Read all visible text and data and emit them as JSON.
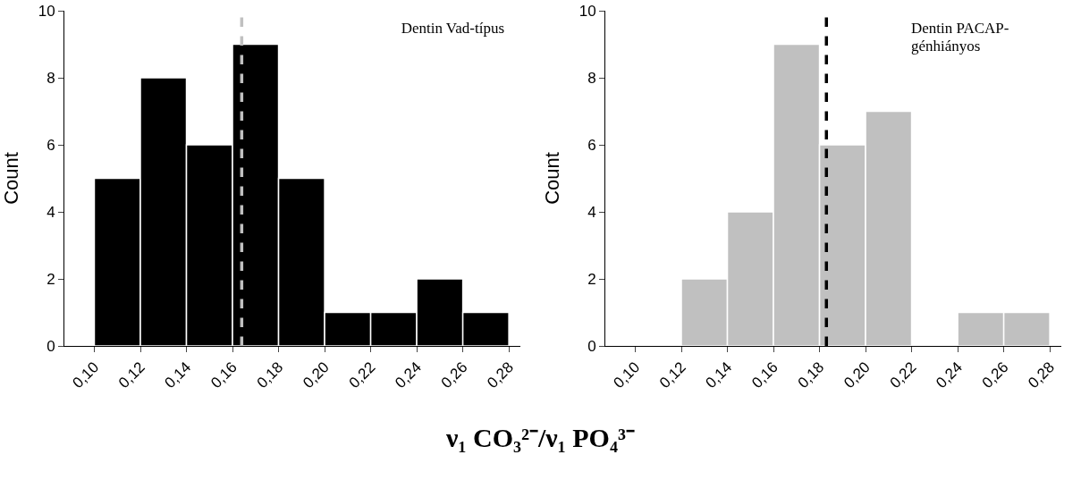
{
  "chart_data": [
    {
      "type": "histogram",
      "ylabel": "Count",
      "xlabel": "ν₁ CO₃²⁻/ν₁ PO₄³⁻",
      "bins": [
        0.1,
        0.12,
        0.14,
        0.16,
        0.18,
        0.2,
        0.22,
        0.24,
        0.26,
        0.28
      ],
      "values": [
        5,
        8,
        6,
        9,
        5,
        1,
        1,
        2,
        1
      ],
      "color": "#000000",
      "xlim": [
        0.087,
        0.285
      ],
      "ylim": [
        0,
        10
      ],
      "yticks": [
        0,
        2,
        4,
        6,
        8,
        10
      ],
      "xticks": [
        {
          "value": 0.1,
          "label": "0,10"
        },
        {
          "value": 0.12,
          "label": "0,12"
        },
        {
          "value": 0.14,
          "label": "0,14"
        },
        {
          "value": 0.16,
          "label": "0,16"
        },
        {
          "value": 0.18,
          "label": "0,18"
        },
        {
          "value": 0.2,
          "label": "0,20"
        },
        {
          "value": 0.22,
          "label": "0,22"
        },
        {
          "value": 0.24,
          "label": "0,24"
        },
        {
          "value": 0.26,
          "label": "0,26"
        },
        {
          "value": 0.28,
          "label": "0,28"
        }
      ],
      "ref_lines": [
        {
          "axis": "x",
          "value": 0.164,
          "color": "#c0c0c0",
          "line_style": "dashed"
        }
      ],
      "annotations": [
        "Dentin Vad-típus"
      ],
      "grid": false
    },
    {
      "type": "histogram",
      "ylabel": "Count",
      "bins": [
        0.1,
        0.12,
        0.14,
        0.16,
        0.18,
        0.2,
        0.22,
        0.24,
        0.26,
        0.28
      ],
      "values": [
        0,
        2,
        4,
        9,
        6,
        7,
        0,
        1,
        1
      ],
      "color": "#c0c0c0",
      "xlim": [
        0.087,
        0.285
      ],
      "ylim": [
        0,
        10
      ],
      "yticks": [
        0,
        2,
        4,
        6,
        8,
        10
      ],
      "xticks": [
        {
          "value": 0.1,
          "label": "0,10"
        },
        {
          "value": 0.12,
          "label": "0,12"
        },
        {
          "value": 0.14,
          "label": "0,14"
        },
        {
          "value": 0.16,
          "label": "0,16"
        },
        {
          "value": 0.18,
          "label": "0,18"
        },
        {
          "value": 0.2,
          "label": "0,20"
        },
        {
          "value": 0.22,
          "label": "0,22"
        },
        {
          "value": 0.24,
          "label": "0,24"
        },
        {
          "value": 0.26,
          "label": "0,26"
        },
        {
          "value": 0.28,
          "label": "0,28"
        }
      ],
      "ref_lines": [
        {
          "axis": "x",
          "value": 0.183,
          "color": "#000000",
          "line_style": "dashed"
        }
      ],
      "annotations": [
        "Dentin PACAP-génhiányos"
      ],
      "grid": false
    }
  ]
}
